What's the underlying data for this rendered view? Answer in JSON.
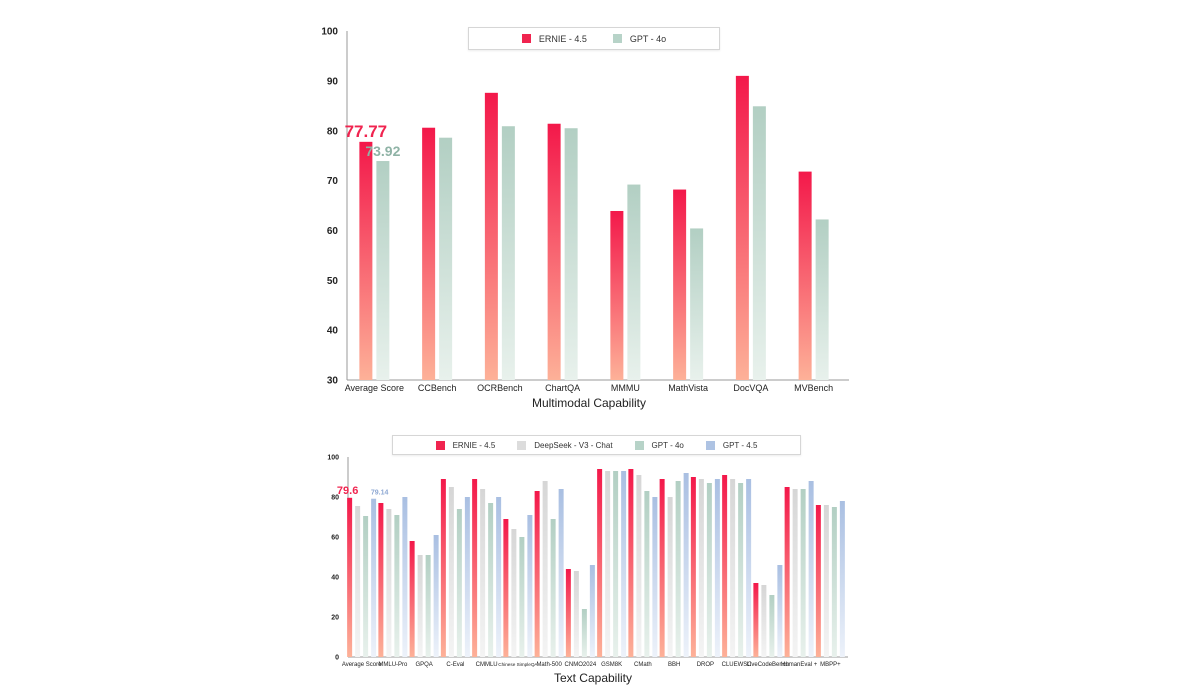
{
  "chart_data": [
    {
      "type": "bar",
      "xlabel": "Multimodal Capability",
      "ylim": [
        30,
        100
      ],
      "yticks": [
        "30",
        "40",
        "50",
        "60",
        "70",
        "80",
        "90",
        "100"
      ],
      "categories": [
        "Average Score",
        "CCBench",
        "OCRBench",
        "ChartQA",
        "MMMU",
        "MathVista",
        "DocVQA",
        "MVBench"
      ],
      "series": [
        {
          "name": "ERNIE - 4.5",
          "values": [
            77.77,
            80.6,
            87.6,
            81.4,
            63.9,
            68.2,
            91.0,
            71.8
          ],
          "color": "#f0244f"
        },
        {
          "name": "GPT - 4o",
          "values": [
            73.92,
            78.6,
            80.9,
            80.5,
            69.2,
            60.4,
            84.9,
            62.2
          ],
          "color": "#b7d3c8"
        }
      ],
      "annotations": [
        {
          "text": "77.77",
          "series": 0,
          "category": 0,
          "color": "#f0244f"
        },
        {
          "text": "73.92",
          "series": 1,
          "category": 0,
          "color": "#8fb3a6"
        }
      ],
      "legend": "top-center",
      "grid": false
    },
    {
      "type": "bar",
      "xlabel": "Text Capability",
      "ylim": [
        0,
        100
      ],
      "yticks": [
        "0",
        "20",
        "40",
        "60",
        "80",
        "100"
      ],
      "categories": [
        "Average Score",
        "MMLU-Pro",
        "GPQA",
        "C-Eval",
        "CMMLU",
        "Chinese SimpleQA",
        "Math-500",
        "CNMO2024",
        "GSM8K",
        "CMath",
        "BBH",
        "DROP",
        "CLUEWSC",
        "LiveCodeBench",
        "HumanEval +",
        "MBPP+"
      ],
      "series": [
        {
          "name": "ERNIE - 4.5",
          "values": [
            79.6,
            77,
            58,
            89,
            89,
            69,
            83,
            44,
            94,
            94,
            89,
            90,
            91,
            37,
            85,
            76
          ],
          "color": "#f0244f"
        },
        {
          "name": "DeepSeek - V3 - Chat",
          "values": [
            75.5,
            74,
            51,
            85,
            84,
            64,
            88,
            43,
            93,
            91,
            80,
            89,
            89,
            36,
            84,
            76
          ],
          "color": "#dcdcdc"
        },
        {
          "name": "GPT - 4o",
          "values": [
            70.5,
            71,
            51,
            74,
            77,
            60,
            69,
            24,
            93,
            83,
            88,
            87,
            87,
            31,
            84,
            75
          ],
          "color": "#b7d3c8"
        },
        {
          "name": "GPT - 4.5",
          "values": [
            79.14,
            80,
            61,
            80,
            80,
            71,
            84,
            46,
            93,
            80,
            92,
            89,
            89,
            46,
            88,
            78
          ],
          "color": "#aec3e3"
        }
      ],
      "annotations": [
        {
          "text": "79.6",
          "series": 0,
          "category": 0,
          "color": "#f0244f"
        },
        {
          "text": "79.14",
          "series": 3,
          "category": 0,
          "color": "#8ea8d3"
        }
      ],
      "legend": "top-center",
      "grid": false
    }
  ]
}
